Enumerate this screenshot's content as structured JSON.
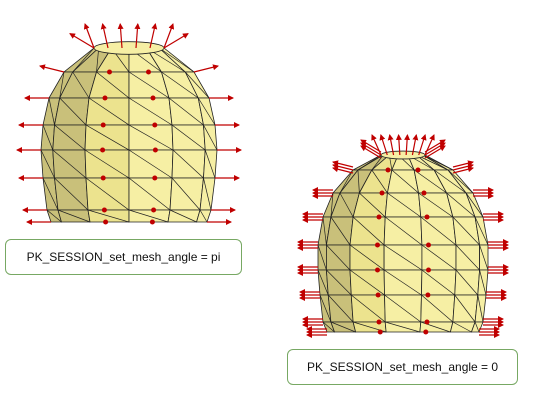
{
  "labels": {
    "left": "PK_SESSION_set_mesh_angle = pi",
    "right": "PK_SESSION_set_mesh_angle = 0"
  },
  "colors": {
    "shell_light": "#f6efa4",
    "shell_mid": "#ece38e",
    "shell_dark": "#c9c07a",
    "mesh_line": "#222222",
    "normal_arrow": "#c00000",
    "label_border": "#77a863"
  },
  "figures": [
    {
      "id": "left-mesh",
      "label_key": "left"
    },
    {
      "id": "right-mesh",
      "label_key": "right"
    }
  ]
}
